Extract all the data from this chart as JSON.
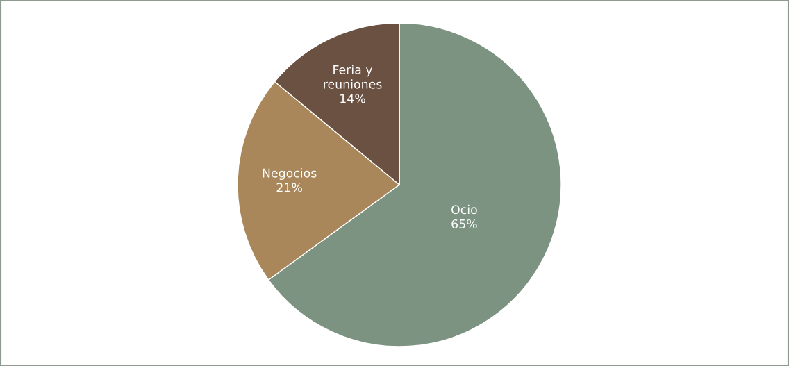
{
  "chart_data": {
    "type": "pie",
    "categories": [
      "Ocio",
      "Negocios",
      "Feria y\nreuniones"
    ],
    "values": [
      65,
      21,
      14
    ],
    "value_labels": [
      "65%",
      "21%",
      "14%"
    ],
    "colors": [
      "#7d9382",
      "#a9875a",
      "#6b5142"
    ],
    "legend": false
  }
}
